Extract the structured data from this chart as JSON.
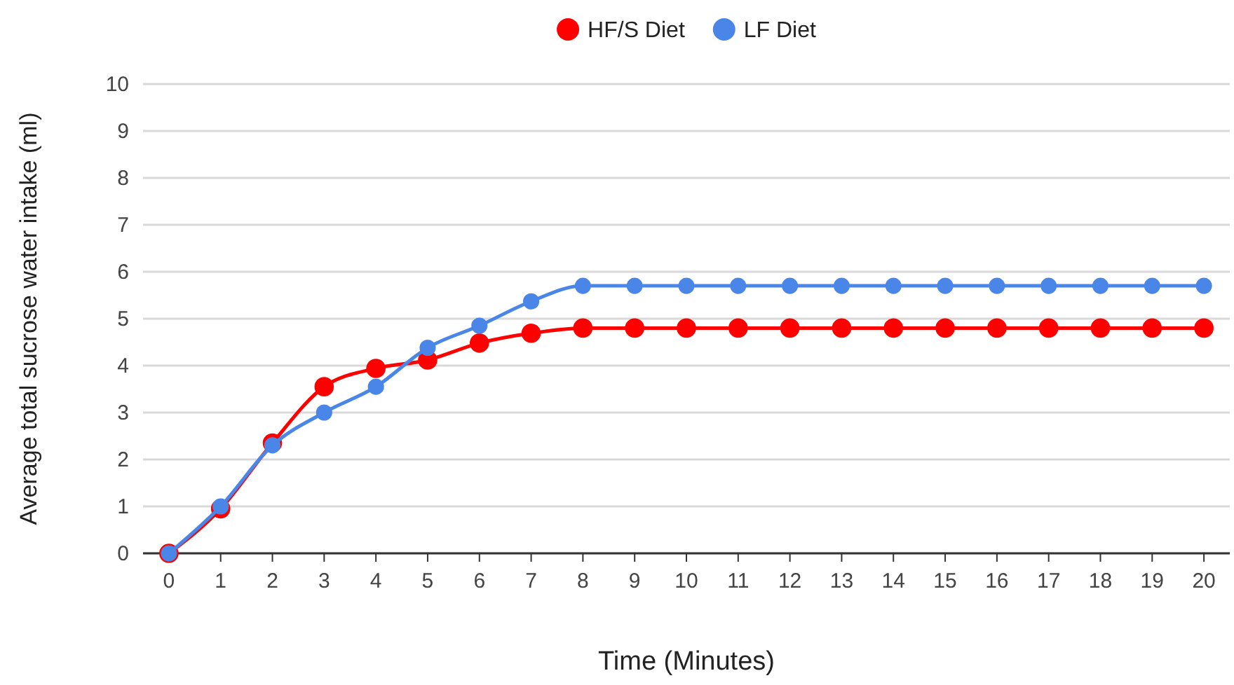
{
  "chart_data": {
    "type": "line",
    "xlabel": "Time (Minutes)",
    "ylabel": "Average total sucrose water intake (ml)",
    "categories": [
      "0",
      "1",
      "2",
      "3",
      "4",
      "5",
      "6",
      "7",
      "8",
      "9",
      "10",
      "11",
      "12",
      "13",
      "14",
      "15",
      "16",
      "17",
      "18",
      "19",
      "20"
    ],
    "series": [
      {
        "name": "HF/S Diet",
        "color": "#ff0000",
        "values": [
          0,
          0.95,
          2.35,
          3.55,
          3.94,
          4.12,
          4.48,
          4.69,
          4.8,
          4.8,
          4.8,
          4.8,
          4.8,
          4.8,
          4.8,
          4.8,
          4.8,
          4.8,
          4.8,
          4.8,
          4.8
        ]
      },
      {
        "name": "LF Diet",
        "color": "#4a86e8",
        "values": [
          0,
          1.0,
          2.3,
          3.0,
          3.55,
          4.38,
          4.85,
          5.37,
          5.7,
          5.7,
          5.7,
          5.7,
          5.7,
          5.7,
          5.7,
          5.7,
          5.7,
          5.7,
          5.7,
          5.7,
          5.7
        ]
      }
    ],
    "ylim": [
      0,
      10
    ],
    "yticks": [
      0,
      1,
      2,
      3,
      4,
      5,
      6,
      7,
      8,
      9,
      10
    ],
    "grid": "y",
    "legend": "top",
    "marker": "circle",
    "line_style": "solid"
  }
}
